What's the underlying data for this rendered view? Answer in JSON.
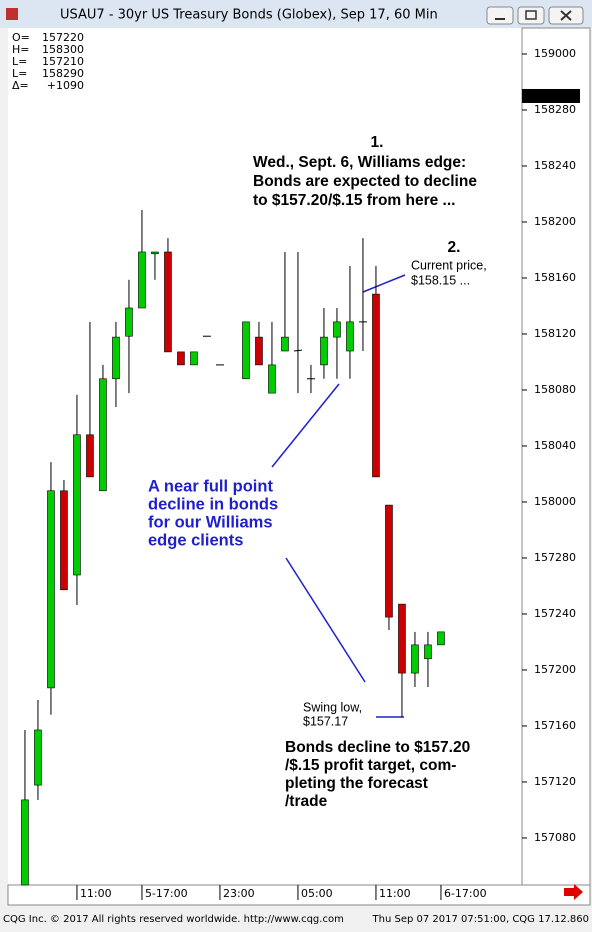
{
  "window_title": "USAU7 - 30yr US Treasury Bonds (Globex), Sep 17, 60 Min",
  "info": [
    {
      "label": "O=",
      "value": {
        "value": 157.6875,
        "label": "157220"
      }
    },
    {
      "label": "H=",
      "value": {
        "value": 158.9375,
        "label": "158300"
      }
    },
    {
      "label": "L=",
      "value": {
        "value": 157.65625,
        "label": "157210"
      }
    },
    {
      "label": "L=",
      "value": {
        "value": 158.90625,
        "label": "158290"
      }
    },
    {
      "label": "Δ=",
      "value": {
        "value": 1.28125,
        "label": "+1090"
      }
    }
  ],
  "chart_data": {
    "type": "candlestick",
    "up_color": "#00cc00",
    "down_color": "#cc0000",
    "open": [
      157.145,
      157.368,
      157.585,
      158.025,
      157.837,
      158.15,
      158.025,
      158.275,
      158.37,
      158.433,
      158.554,
      158.558,
      158.335,
      158.306,
      158.37,
      158.306,
      null,
      158.275,
      158.368,
      158.243,
      158.337,
      158.337,
      158.275,
      158.306,
      158.368,
      158.337,
      158.402,
      158.464,
      157.993,
      157.772,
      157.618,
      157.65,
      157.681
    ],
    "high": [
      157.491,
      157.558,
      158.089,
      158.049,
      158.239,
      158.402,
      158.306,
      158.402,
      158.496,
      158.652,
      158.558,
      158.589,
      158.335,
      158.335,
      158.37,
      158.306,
      null,
      158.402,
      158.402,
      158.402,
      158.558,
      158.558,
      158.306,
      158.433,
      158.433,
      158.527,
      158.589,
      158.527,
      157.993,
      157.772,
      157.71,
      157.71,
      157.71
    ],
    "low": [
      157.145,
      157.335,
      157.525,
      157.804,
      157.77,
      158.056,
      158.025,
      158.212,
      158.243,
      158.433,
      158.496,
      158.335,
      158.306,
      158.306,
      158.37,
      158.306,
      null,
      158.275,
      158.306,
      158.243,
      158.337,
      158.243,
      158.243,
      158.275,
      158.275,
      158.275,
      158.337,
      158.056,
      157.714,
      157.52,
      157.587,
      157.587,
      157.681
    ],
    "close": [
      157.335,
      157.491,
      158.025,
      157.804,
      158.15,
      158.056,
      158.275,
      158.368,
      158.433,
      158.558,
      158.558,
      158.335,
      158.306,
      158.335,
      158.37,
      158.306,
      null,
      158.402,
      158.306,
      158.306,
      158.368,
      158.339,
      158.275,
      158.368,
      158.402,
      158.402,
      158.402,
      158.056,
      157.743,
      157.618,
      157.681,
      157.681,
      157.71
    ],
    "xlim": [
      -1.15,
      38.08
    ],
    "xticks": [
      {
        "value": 4,
        "label": "11:00"
      },
      {
        "value": 9,
        "label": "5-17:00"
      },
      {
        "value": 15,
        "label": "23:00"
      },
      {
        "value": 21,
        "label": "05:00"
      },
      {
        "value": 27,
        "label": "11:00"
      },
      {
        "value": 32,
        "label": "6-17:00"
      }
    ],
    "ylim": [
      157.145,
      159.058
    ],
    "yticks": [
      {
        "value": 159,
        "label": "159000"
      },
      {
        "value": 158.875,
        "label": "158280"
      },
      {
        "value": 158.75,
        "label": "158240"
      },
      {
        "value": 158.625,
        "label": "158200"
      },
      {
        "value": 158.5,
        "label": "158160"
      },
      {
        "value": 158.375,
        "label": "158120"
      },
      {
        "value": 158.25,
        "label": "158080"
      },
      {
        "value": 158.125,
        "label": "158040"
      },
      {
        "value": 158,
        "label": "158000"
      },
      {
        "value": 157.875,
        "label": "157280"
      },
      {
        "value": 157.75,
        "label": "157240"
      },
      {
        "value": 157.625,
        "label": "157200"
      },
      {
        "value": 157.5,
        "label": "157160"
      },
      {
        "value": 157.375,
        "label": "157120"
      },
      {
        "value": 157.25,
        "label": "157080"
      }
    ],
    "current_price": {
      "value": 158.90625,
      "label": "158290"
    },
    "annotations": [
      {
        "lines": [
          "1."
        ]
      },
      {
        "lines": [
          "Wed., Sept. 6, Williams edge:",
          "Bonds are expected to decline",
          "to $157.20/$.15 from here ..."
        ]
      },
      {
        "lines": [
          "2."
        ]
      },
      {
        "lines": [
          "Current price,",
          "$158.15 ..."
        ]
      },
      {
        "lines": [
          "A near full point",
          "decline in bonds",
          "for our Williams",
          "edge clients"
        ]
      },
      {
        "lines": [
          "Swing low,",
          "$157.17"
        ]
      },
      {
        "lines": [
          "Bonds decline to $157.20",
          "/$.15 profit target, com-",
          "pleting the forecast",
          "/trade"
        ]
      }
    ]
  },
  "footer": {
    "left": "CQG Inc. © 2017 All rights reserved worldwide. http://www.cqg.com",
    "right": "Thu Sep 07 2017 07:51:00, CQG 17.12.860"
  }
}
